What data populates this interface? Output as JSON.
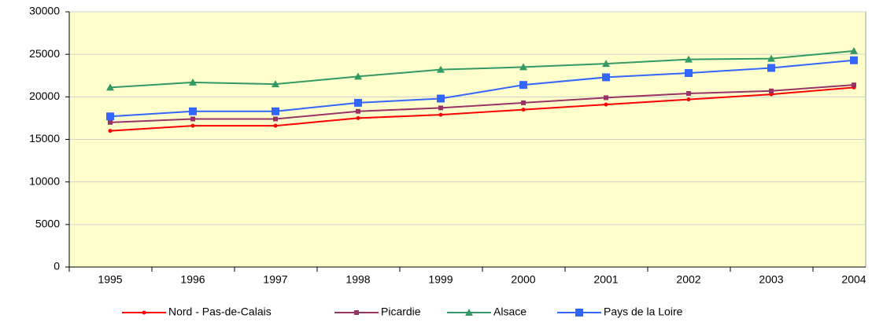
{
  "chart_data": {
    "type": "line",
    "categories": [
      "1995",
      "1996",
      "1997",
      "1998",
      "1999",
      "2000",
      "2001",
      "2002",
      "2003",
      "2004"
    ],
    "series": [
      {
        "name": "Nord - Pas-de-Calais",
        "color": "#ff0000",
        "marker": "circle",
        "values": [
          16000,
          16600,
          16600,
          17500,
          17900,
          18500,
          19100,
          19700,
          20300,
          21100
        ]
      },
      {
        "name": "Picardie",
        "color": "#993366",
        "marker": "square",
        "values": [
          17000,
          17400,
          17400,
          18300,
          18700,
          19300,
          19900,
          20400,
          20700,
          21400
        ]
      },
      {
        "name": "Alsace",
        "color": "#339966",
        "marker": "triangle",
        "values": [
          21100,
          21700,
          21500,
          22400,
          23200,
          23500,
          23900,
          24400,
          24500,
          25400
        ]
      },
      {
        "name": "Pays de la Loire",
        "color": "#3366ff",
        "marker": "square",
        "values": [
          17700,
          18300,
          18300,
          19300,
          19800,
          21400,
          22300,
          22800,
          23400,
          24300
        ]
      }
    ],
    "ylim": [
      0,
      30000
    ],
    "yticks": [
      0,
      5000,
      10000,
      15000,
      20000,
      25000,
      30000
    ],
    "grid": true,
    "legend": "bottom",
    "background": "#ffffcc"
  }
}
